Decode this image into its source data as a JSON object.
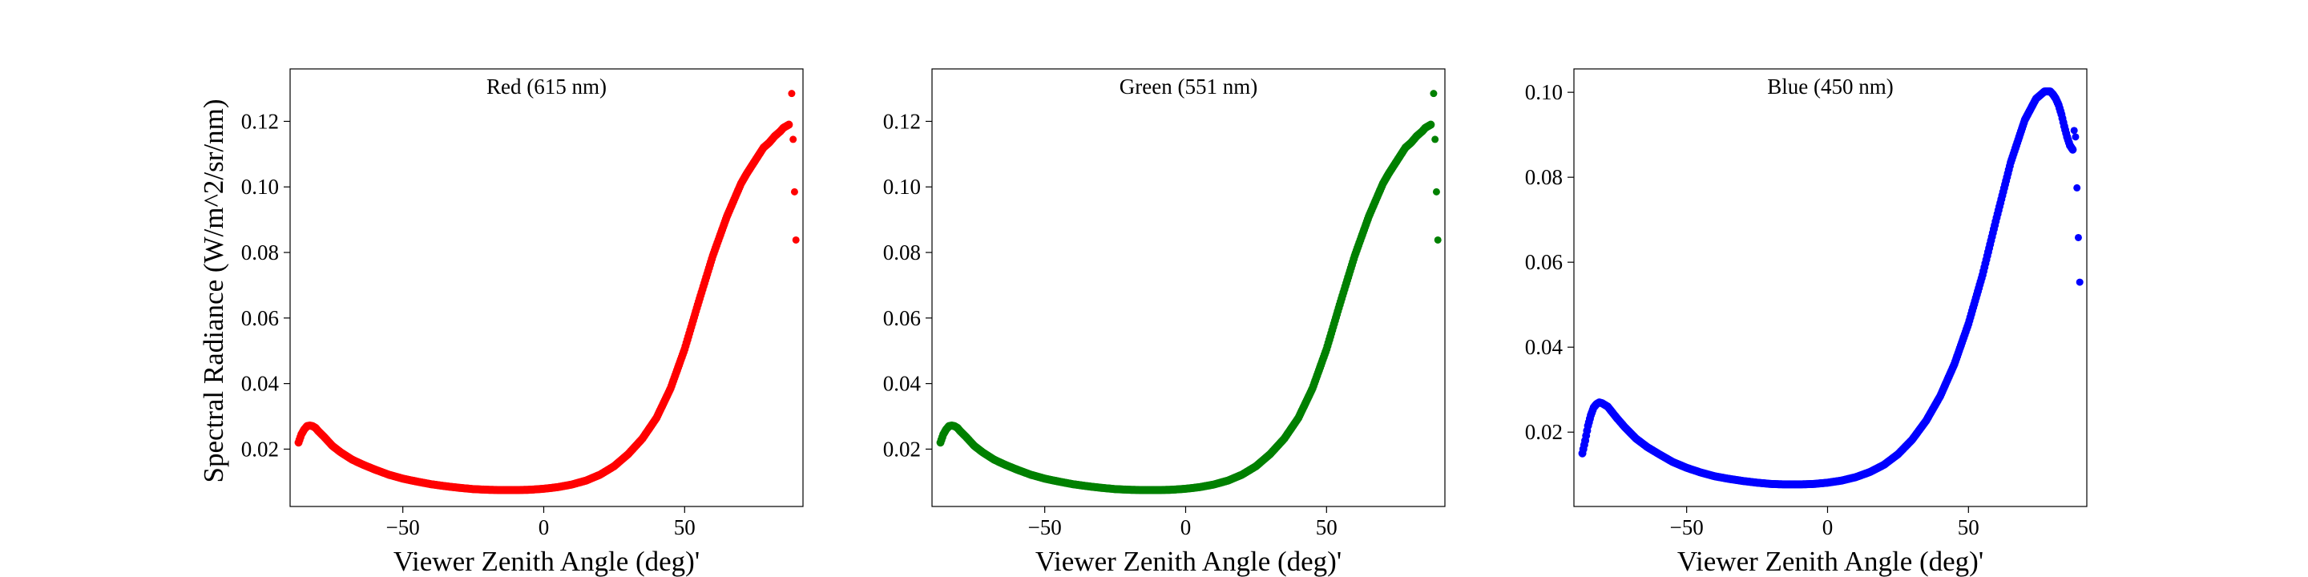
{
  "figure": {
    "ylabel": "Spectral Radiance (W/m^2/sr/nm)",
    "xlabel": "Viewer Zenith Angle (deg)'"
  },
  "chart_data": [
    {
      "type": "scatter",
      "title": "Red (615 nm)",
      "color": "#ff0000",
      "xlabel": "Viewer Zenith Angle (deg)'",
      "ylabel": "Spectral Radiance (W/m^2/sr/nm)",
      "xlim": [
        -90,
        92
      ],
      "ylim": [
        0.0025,
        0.136
      ],
      "xticks": [
        -50,
        0,
        50
      ],
      "xtick_labels": [
        "−50",
        "0",
        "50"
      ],
      "yticks": [
        0.02,
        0.04,
        0.06,
        0.08,
        0.1,
        0.12
      ],
      "ytick_labels": [
        "0.02",
        "0.04",
        "0.06",
        "0.08",
        "0.10",
        "0.12"
      ],
      "grid": false,
      "curve_x": [
        -87,
        -86,
        -85,
        -84,
        -83,
        -82,
        -81,
        -80,
        -78,
        -75,
        -72,
        -68,
        -64,
        -60,
        -55,
        -50,
        -45,
        -40,
        -35,
        -30,
        -25,
        -20,
        -15,
        -10,
        -5,
        0,
        5,
        10,
        15,
        20,
        25,
        30,
        35,
        40,
        45,
        50,
        55,
        60,
        65,
        70,
        72,
        75,
        78,
        80,
        82,
        84,
        85,
        86,
        87
      ],
      "curve_y": [
        0.022,
        0.0245,
        0.026,
        0.027,
        0.0272,
        0.027,
        0.0265,
        0.0255,
        0.0238,
        0.021,
        0.019,
        0.0168,
        0.0152,
        0.0138,
        0.0122,
        0.011,
        0.0101,
        0.0093,
        0.0087,
        0.0082,
        0.0078,
        0.0076,
        0.0075,
        0.0075,
        0.0076,
        0.0079,
        0.0084,
        0.0092,
        0.0104,
        0.0122,
        0.0148,
        0.0185,
        0.0232,
        0.0295,
        0.0385,
        0.0505,
        0.065,
        0.079,
        0.091,
        0.101,
        0.104,
        0.108,
        0.112,
        0.1135,
        0.1155,
        0.117,
        0.118,
        0.1185,
        0.119
      ],
      "outliers_x": [
        88,
        88.5,
        89,
        89.5
      ],
      "outliers_y": [
        0.1285,
        0.1145,
        0.0985,
        0.0838
      ]
    },
    {
      "type": "scatter",
      "title": "Green (551 nm)",
      "color": "#008000",
      "xlabel": "Viewer Zenith Angle (deg)'",
      "ylabel": "",
      "xlim": [
        -90,
        92
      ],
      "ylim": [
        0.0025,
        0.136
      ],
      "xticks": [
        -50,
        0,
        50
      ],
      "xtick_labels": [
        "−50",
        "0",
        "50"
      ],
      "yticks": [
        0.02,
        0.04,
        0.06,
        0.08,
        0.1,
        0.12
      ],
      "ytick_labels": [
        "0.02",
        "0.04",
        "0.06",
        "0.08",
        "0.10",
        "0.12"
      ],
      "grid": false,
      "curve_x": [
        -87,
        -86,
        -85,
        -84,
        -83,
        -82,
        -81,
        -80,
        -78,
        -75,
        -72,
        -68,
        -64,
        -60,
        -55,
        -50,
        -45,
        -40,
        -35,
        -30,
        -25,
        -20,
        -15,
        -10,
        -5,
        0,
        5,
        10,
        15,
        20,
        25,
        30,
        35,
        40,
        45,
        50,
        55,
        60,
        65,
        70,
        72,
        75,
        78,
        80,
        82,
        84,
        85,
        86,
        87
      ],
      "curve_y": [
        0.022,
        0.0245,
        0.026,
        0.027,
        0.0272,
        0.027,
        0.0265,
        0.0255,
        0.0238,
        0.021,
        0.019,
        0.0168,
        0.0152,
        0.0138,
        0.0122,
        0.011,
        0.0101,
        0.0093,
        0.0087,
        0.0082,
        0.0078,
        0.0076,
        0.0075,
        0.0075,
        0.0076,
        0.0079,
        0.0084,
        0.0092,
        0.0104,
        0.0122,
        0.0148,
        0.0185,
        0.0232,
        0.0295,
        0.0385,
        0.0505,
        0.065,
        0.079,
        0.091,
        0.101,
        0.104,
        0.108,
        0.112,
        0.1135,
        0.1155,
        0.117,
        0.118,
        0.1185,
        0.119
      ],
      "outliers_x": [
        88,
        88.5,
        89,
        89.5
      ],
      "outliers_y": [
        0.1285,
        0.1145,
        0.0985,
        0.0838
      ]
    },
    {
      "type": "scatter",
      "title": "Blue (450 nm)",
      "color": "#0000ff",
      "xlabel": "Viewer Zenith Angle (deg)'",
      "ylabel": "",
      "xlim": [
        -90,
        92
      ],
      "ylim": [
        0.0025,
        0.1055
      ],
      "xticks": [
        -50,
        0,
        50
      ],
      "xtick_labels": [
        "−50",
        "0",
        "50"
      ],
      "yticks": [
        0.02,
        0.04,
        0.06,
        0.08,
        0.1
      ],
      "ytick_labels": [
        "0.02",
        "0.04",
        "0.06",
        "0.08",
        "0.10"
      ],
      "grid": false,
      "curve_x": [
        -87,
        -86,
        -85,
        -84,
        -83,
        -82,
        -81,
        -80,
        -78,
        -75,
        -72,
        -68,
        -64,
        -60,
        -55,
        -50,
        -45,
        -40,
        -35,
        -30,
        -25,
        -20,
        -15,
        -10,
        -5,
        0,
        5,
        10,
        15,
        20,
        25,
        30,
        35,
        40,
        45,
        50,
        55,
        60,
        65,
        70,
        74,
        77,
        79,
        80,
        81,
        82,
        83,
        84,
        85,
        86,
        87
      ],
      "curve_y": [
        0.015,
        0.018,
        0.0215,
        0.024,
        0.0258,
        0.0266,
        0.027,
        0.0268,
        0.026,
        0.0235,
        0.0212,
        0.0185,
        0.0165,
        0.0149,
        0.013,
        0.0116,
        0.0105,
        0.0096,
        0.009,
        0.0085,
        0.0081,
        0.0078,
        0.0077,
        0.0077,
        0.0078,
        0.0081,
        0.0086,
        0.0094,
        0.0106,
        0.0123,
        0.0148,
        0.0182,
        0.0227,
        0.0285,
        0.036,
        0.0455,
        0.057,
        0.0705,
        0.0835,
        0.0935,
        0.0985,
        0.1002,
        0.1002,
        0.0995,
        0.0985,
        0.097,
        0.0948,
        0.092,
        0.0895,
        0.0875,
        0.0865
      ],
      "outliers_x": [
        87.5,
        88,
        88.5,
        89,
        89.5
      ],
      "outliers_y": [
        0.091,
        0.0895,
        0.0775,
        0.0658,
        0.0553
      ]
    }
  ]
}
